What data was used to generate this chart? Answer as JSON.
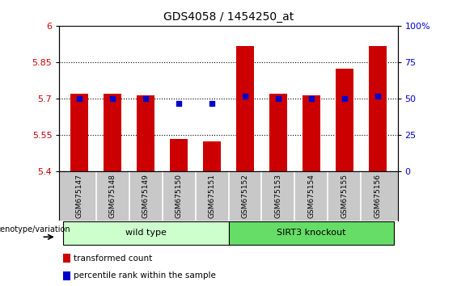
{
  "title": "GDS4058 / 1454250_at",
  "samples": [
    "GSM675147",
    "GSM675148",
    "GSM675149",
    "GSM675150",
    "GSM675151",
    "GSM675152",
    "GSM675153",
    "GSM675154",
    "GSM675155",
    "GSM675156"
  ],
  "transformed_count": [
    5.72,
    5.72,
    5.715,
    5.535,
    5.525,
    5.915,
    5.72,
    5.715,
    5.825,
    5.915
  ],
  "percentile_rank_values": [
    50,
    50,
    50,
    47,
    47,
    52,
    50,
    50,
    50,
    52
  ],
  "ylim_left": [
    5.4,
    6.0
  ],
  "ylim_right": [
    0,
    100
  ],
  "yticks_left": [
    5.4,
    5.55,
    5.7,
    5.85,
    6.0
  ],
  "yticks_right": [
    0,
    25,
    50,
    75,
    100
  ],
  "ytick_labels_left": [
    "5.4",
    "5.55",
    "5.7",
    "5.85",
    "6"
  ],
  "ytick_labels_right": [
    "0",
    "25",
    "50",
    "75",
    "100%"
  ],
  "hlines": [
    5.55,
    5.7,
    5.85
  ],
  "bar_color": "#cc0000",
  "blue_color": "#0000cc",
  "bar_width": 0.55,
  "groups": [
    {
      "label": "wild type",
      "start": 0,
      "end": 4,
      "color": "#ccffcc"
    },
    {
      "label": "SIRT3 knockout",
      "start": 5,
      "end": 9,
      "color": "#66dd66"
    }
  ],
  "genotype_label": "genotype/variation",
  "legend_items": [
    {
      "color": "#cc0000",
      "label": "transformed count"
    },
    {
      "color": "#0000cc",
      "label": "percentile rank within the sample"
    }
  ],
  "background_color": "#ffffff",
  "tick_label_color_left": "#cc0000",
  "tick_label_color_right": "#0000cc",
  "label_bg_color": "#c8c8c8",
  "label_line_color": "#ffffff"
}
